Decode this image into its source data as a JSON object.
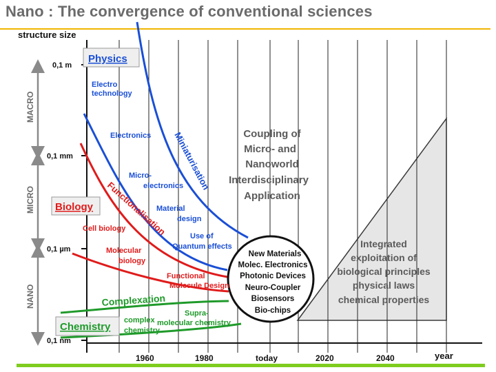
{
  "title": "Nano : The convergence of conventional sciences",
  "axes": {
    "y_title": "structure size",
    "y_ticks": [
      "0,1 m",
      "0,1 mm",
      "0,1 µm",
      "0,1 nm"
    ],
    "scale_ranges": [
      "MACRO",
      "MICRO",
      "NANO"
    ],
    "x_ticks": [
      "1960",
      "1980",
      "today",
      "2020",
      "2040"
    ],
    "x_title": "year"
  },
  "disciplines": {
    "physics": "Physics",
    "biology": "Biology",
    "chemistry": "Chemistry"
  },
  "trend_labels": {
    "miniaturisation": "Miniaturisation",
    "functionalisation": "Functionalisation",
    "complexation": "Complexation"
  },
  "physics_items": {
    "electro_line1": "Electro",
    "electro_line2": "technology",
    "electronics": "Electronics",
    "micro_line1": "Micro-",
    "micro_line2": "electronics",
    "material_line1": "Material",
    "material_line2": "design",
    "quantum_line1": "Use of",
    "quantum_line2": "Quantum effects"
  },
  "biology_items": {
    "cell": "Cell biology",
    "molecular_line1": "Molecular",
    "molecular_line2": "biology",
    "functional_line1": "Functional",
    "functional_line2": "Molecule Design"
  },
  "chemistry_items": {
    "supra_line1": "Supra-",
    "supra_line2": "molecular chemistry",
    "complex_line1": "complex",
    "complex_line2": "chemistry"
  },
  "coupling": [
    "Coupling of",
    "Micro- and",
    "Nanoworld",
    "Interdisciplinary",
    "Application"
  ],
  "circle_items": [
    "New Materials",
    "Molec. Electronics",
    "Photonic Devices",
    "Neuro-Coupler",
    "Biosensors",
    "Bio-chips",
    "..."
  ],
  "triangle_text": [
    "Integrated",
    "exploitation of",
    "biological principles",
    "physical laws",
    "chemical properties"
  ],
  "colors": {
    "physics": "#1a4fd6",
    "biology": "#e01b1b",
    "chemistry": "#1f9a2a",
    "title": "#6b6b6b",
    "accent_top": "#f0b400",
    "accent_bottom": "#7fcc1f",
    "triangle": "#e6e6e6"
  }
}
